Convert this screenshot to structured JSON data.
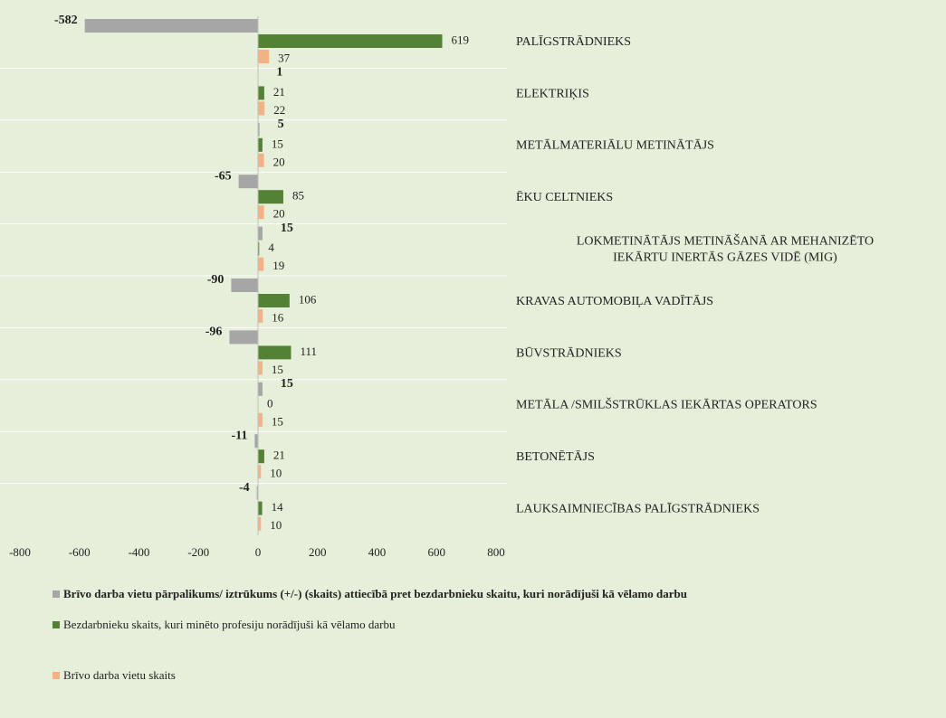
{
  "chart_data": {
    "type": "bar",
    "orientation": "horizontal",
    "categories": [
      "PALĪGSTRĀDNIEKS",
      "ELEKTRIĶIS",
      "METĀLMATERIĀLU METINĀTĀJS",
      "ĒKU CELTNIEKS",
      "LOKMETINĀTĀJS METINĀŠANĀ AR MEHANIZĒTO\nIEKĀRTU INERTĀS GĀZES VIDĒ (MIG)",
      "KRAVAS AUTOMOBIĻA VADĪTĀJS",
      "BŪVSTRĀDNIEKS",
      "METĀLA /SMILŠSTRŪKLAS IEKĀRTAS OPERATORS",
      "BETONĒTĀJS",
      "LAUKSAIMNIECĪBAS PALĪGSTRĀDNIEKS"
    ],
    "series": [
      {
        "name": "Brīvo darba vietu pārpalikums/ iztrūkums (+/-) (skaits) attiecībā pret bezdarbnieku skaitu, kuri norādījuši kā vēlamo darbu",
        "color": "#a6a6a6",
        "values": [
          -582,
          1,
          5,
          -65,
          15,
          -90,
          -96,
          15,
          -11,
          -4
        ]
      },
      {
        "name": "Bezdarbnieku skaits, kuri minēto profesiju norādījuši kā vēlamo darbu",
        "color": "#548235",
        "values": [
          619,
          21,
          15,
          85,
          4,
          106,
          111,
          0,
          21,
          14
        ]
      },
      {
        "name": "Brīvo darba vietu skaits",
        "color": "#f4b183",
        "values": [
          37,
          22,
          20,
          20,
          19,
          16,
          15,
          15,
          10,
          10
        ]
      }
    ],
    "xlim": [
      -800,
      800
    ],
    "xticks": [
      -800,
      -600,
      -400,
      -200,
      0,
      200,
      400,
      600,
      800
    ]
  }
}
